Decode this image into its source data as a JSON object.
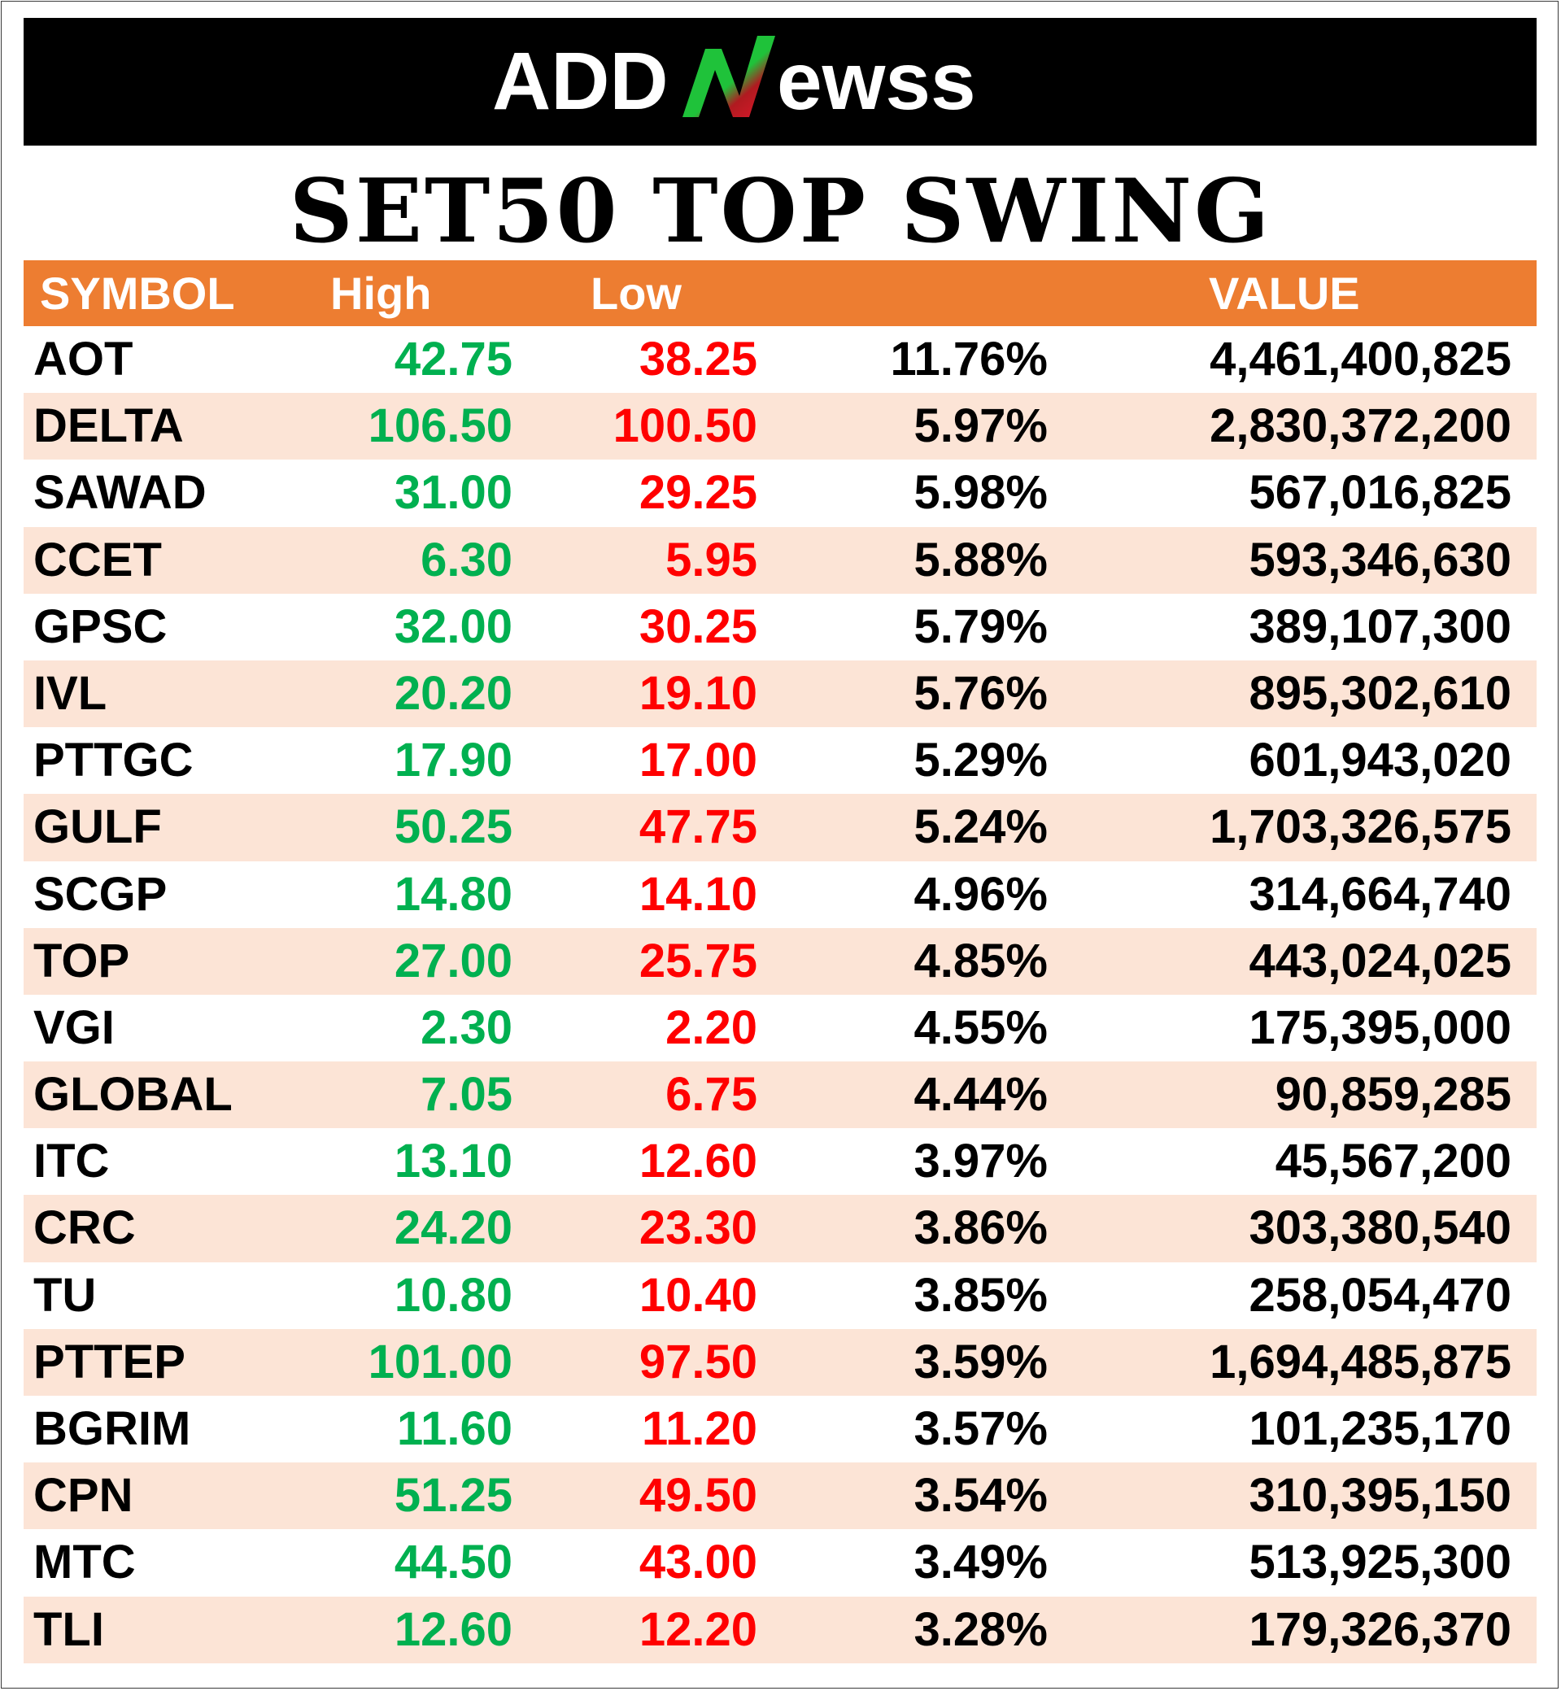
{
  "brand": {
    "logo_text_left": "ADD",
    "logo_text_right": "ewss",
    "logo_mark": "N",
    "logo_colors": {
      "green": "#1fc23a",
      "red": "#e3182d",
      "white": "#ffffff"
    }
  },
  "title": "SET50 TOP SWING",
  "columns": {
    "symbol": "SYMBOL",
    "high": "High",
    "low": "Low",
    "pct": "",
    "value": "VALUE"
  },
  "colors": {
    "header_bg": "#ed7d31",
    "alt_row_bg": "#fce4d6",
    "high_text": "#00b050",
    "low_text": "#ff0000"
  },
  "rows": [
    {
      "symbol": "AOT",
      "high": "42.75",
      "low": "38.25",
      "pct": "11.76%",
      "value": "4,461,400,825"
    },
    {
      "symbol": "DELTA",
      "high": "106.50",
      "low": "100.50",
      "pct": "5.97%",
      "value": "2,830,372,200"
    },
    {
      "symbol": "SAWAD",
      "high": "31.00",
      "low": "29.25",
      "pct": "5.98%",
      "value": "567,016,825"
    },
    {
      "symbol": "CCET",
      "high": "6.30",
      "low": "5.95",
      "pct": "5.88%",
      "value": "593,346,630"
    },
    {
      "symbol": "GPSC",
      "high": "32.00",
      "low": "30.25",
      "pct": "5.79%",
      "value": "389,107,300"
    },
    {
      "symbol": "IVL",
      "high": "20.20",
      "low": "19.10",
      "pct": "5.76%",
      "value": "895,302,610"
    },
    {
      "symbol": "PTTGC",
      "high": "17.90",
      "low": "17.00",
      "pct": "5.29%",
      "value": "601,943,020"
    },
    {
      "symbol": "GULF",
      "high": "50.25",
      "low": "47.75",
      "pct": "5.24%",
      "value": "1,703,326,575"
    },
    {
      "symbol": "SCGP",
      "high": "14.80",
      "low": "14.10",
      "pct": "4.96%",
      "value": "314,664,740"
    },
    {
      "symbol": "TOP",
      "high": "27.00",
      "low": "25.75",
      "pct": "4.85%",
      "value": "443,024,025"
    },
    {
      "symbol": "VGI",
      "high": "2.30",
      "low": "2.20",
      "pct": "4.55%",
      "value": "175,395,000"
    },
    {
      "symbol": "GLOBAL",
      "high": "7.05",
      "low": "6.75",
      "pct": "4.44%",
      "value": "90,859,285"
    },
    {
      "symbol": "ITC",
      "high": "13.10",
      "low": "12.60",
      "pct": "3.97%",
      "value": "45,567,200"
    },
    {
      "symbol": "CRC",
      "high": "24.20",
      "low": "23.30",
      "pct": "3.86%",
      "value": "303,380,540"
    },
    {
      "symbol": "TU",
      "high": "10.80",
      "low": "10.40",
      "pct": "3.85%",
      "value": "258,054,470"
    },
    {
      "symbol": "PTTEP",
      "high": "101.00",
      "low": "97.50",
      "pct": "3.59%",
      "value": "1,694,485,875"
    },
    {
      "symbol": "BGRIM",
      "high": "11.60",
      "low": "11.20",
      "pct": "3.57%",
      "value": "101,235,170"
    },
    {
      "symbol": "CPN",
      "high": "51.25",
      "low": "49.50",
      "pct": "3.54%",
      "value": "310,395,150"
    },
    {
      "symbol": "MTC",
      "high": "44.50",
      "low": "43.00",
      "pct": "3.49%",
      "value": "513,925,300"
    },
    {
      "symbol": "TLI",
      "high": "12.60",
      "low": "12.20",
      "pct": "3.28%",
      "value": "179,326,370"
    }
  ]
}
